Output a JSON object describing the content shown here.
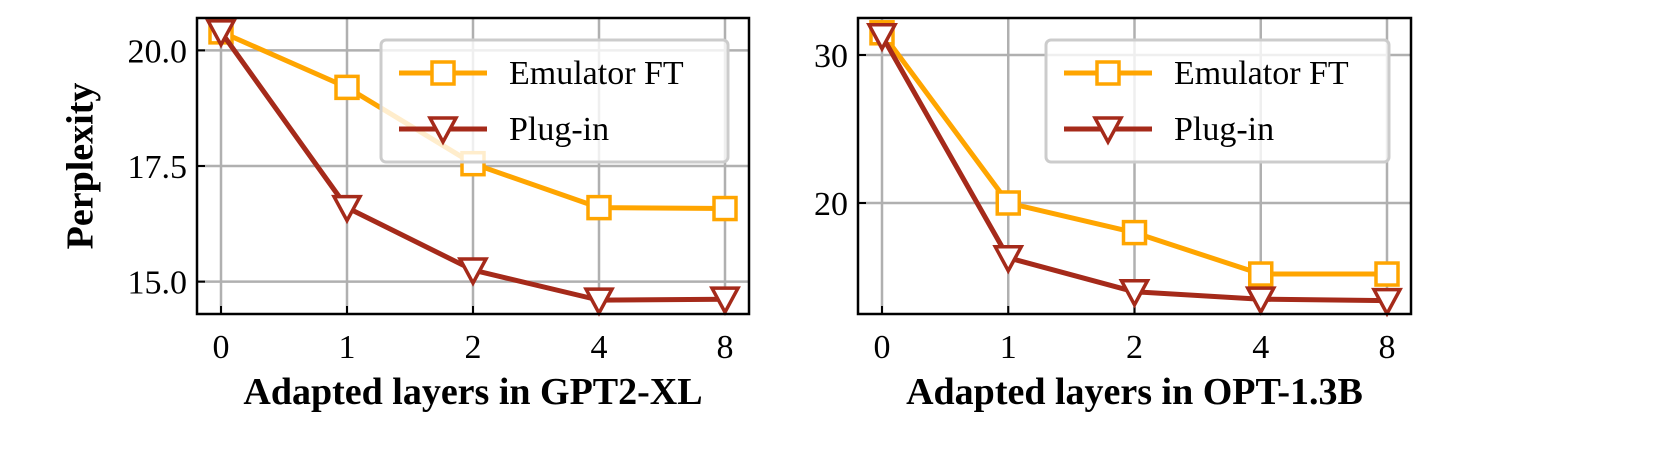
{
  "chart_data": [
    {
      "type": "line",
      "categories": [
        "0",
        "1",
        "2",
        "4",
        "8"
      ],
      "xlabel": "Adapted layers in GPT2-XL",
      "ylabel": "Perplexity",
      "ylim": [
        14.3,
        20.7
      ],
      "yticks": [
        15.0,
        17.5,
        20.0
      ],
      "ytick_labels": [
        "15.0",
        "17.5",
        "20.0"
      ],
      "grid": true,
      "legend_position": "top-right",
      "series": [
        {
          "name": "Emulator FT",
          "values": [
            20.4,
            19.2,
            17.55,
            16.6,
            16.58
          ],
          "color": "#FFA500",
          "marker": "square"
        },
        {
          "name": "Plug-in",
          "values": [
            20.4,
            16.6,
            15.25,
            14.6,
            14.62
          ],
          "color": "#A52A1A",
          "marker": "triangle-down"
        }
      ]
    },
    {
      "type": "line",
      "categories": [
        "0",
        "1",
        "2",
        "4",
        "8"
      ],
      "xlabel": "Adapted layers in OPT-1.3B",
      "ylabel": "",
      "ylim": [
        12.5,
        32.5
      ],
      "yticks": [
        20,
        30
      ],
      "ytick_labels": [
        "20",
        "30"
      ],
      "grid": true,
      "legend_position": "top-right",
      "series": [
        {
          "name": "Emulator FT",
          "values": [
            31.5,
            20.0,
            18.0,
            15.2,
            15.2
          ],
          "color": "#FFA500",
          "marker": "square"
        },
        {
          "name": "Plug-in",
          "values": [
            31.3,
            16.3,
            14.0,
            13.5,
            13.4
          ],
          "color": "#A52A1A",
          "marker": "triangle-down"
        }
      ]
    }
  ]
}
